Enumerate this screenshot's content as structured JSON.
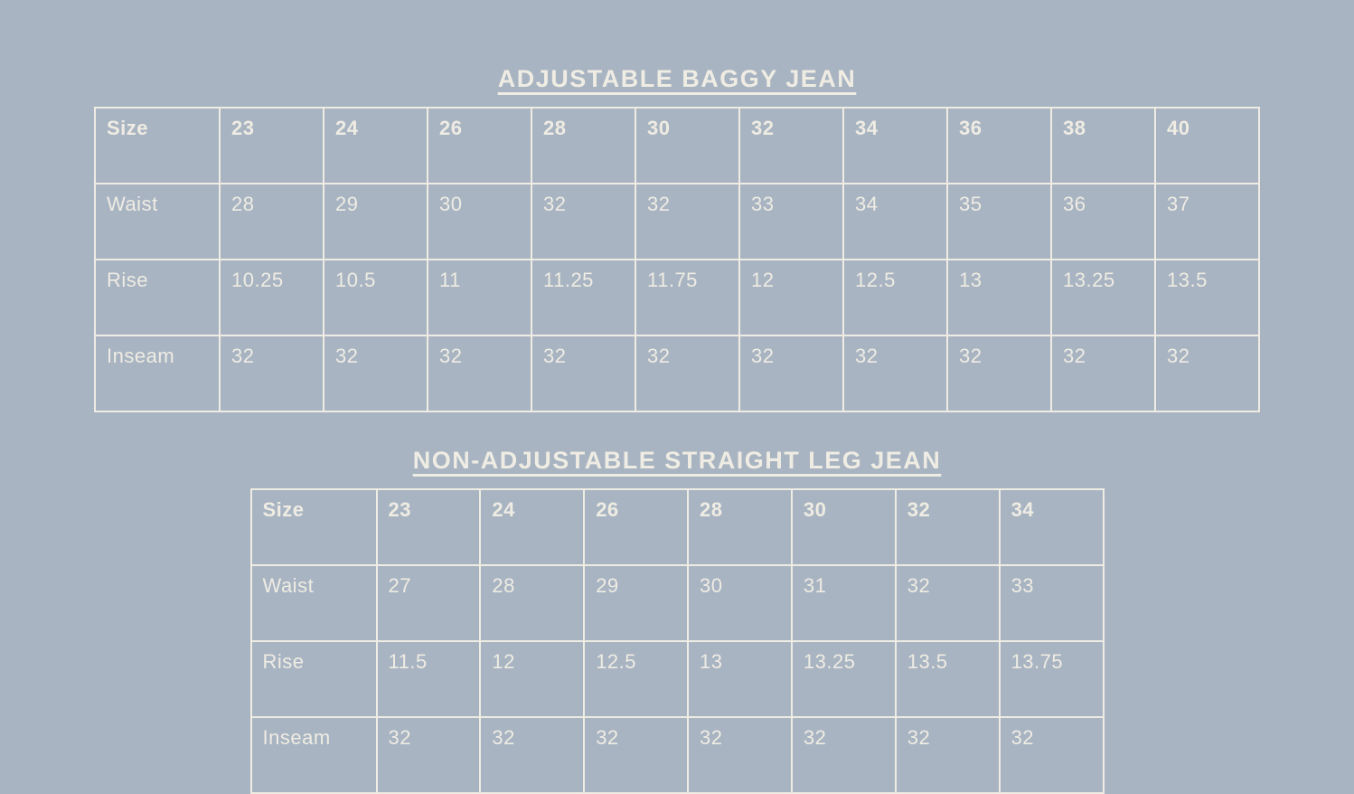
{
  "page": {
    "background_color": "#a8b4c2",
    "text_color": "#efece3",
    "border_color": "#efece3"
  },
  "chart_data": [
    {
      "type": "table",
      "title": "ADJUSTABLE BAGGY JEAN",
      "columns": [
        "Size",
        "23",
        "24",
        "26",
        "28",
        "30",
        "32",
        "34",
        "36",
        "38",
        "40"
      ],
      "rows": [
        [
          "Waist",
          "28",
          "29",
          "30",
          "32",
          "32",
          "33",
          "34",
          "35",
          "36",
          "37"
        ],
        [
          "Rise",
          "10.25",
          "10.5",
          "11",
          "11.25",
          "11.75",
          "12",
          "12.5",
          "13",
          "13.25",
          "13.5"
        ],
        [
          "Inseam",
          "32",
          "32",
          "32",
          "32",
          "32",
          "32",
          "32",
          "32",
          "32",
          "32"
        ]
      ],
      "layout": {
        "header_row_bold": true,
        "grid": "all-borders",
        "title_underlined": true
      }
    },
    {
      "type": "table",
      "title": "NON-ADJUSTABLE STRAIGHT LEG JEAN",
      "columns": [
        "Size",
        "23",
        "24",
        "26",
        "28",
        "30",
        "32",
        "34"
      ],
      "rows": [
        [
          "Waist",
          "27",
          "28",
          "29",
          "30",
          "31",
          "32",
          "33"
        ],
        [
          "Rise",
          "11.5",
          "12",
          "12.5",
          "13",
          "13.25",
          "13.5",
          "13.75"
        ],
        [
          "Inseam",
          "32",
          "32",
          "32",
          "32",
          "32",
          "32",
          "32"
        ]
      ],
      "layout": {
        "header_row_bold": true,
        "grid": "all-borders",
        "title_underlined": true
      }
    }
  ]
}
